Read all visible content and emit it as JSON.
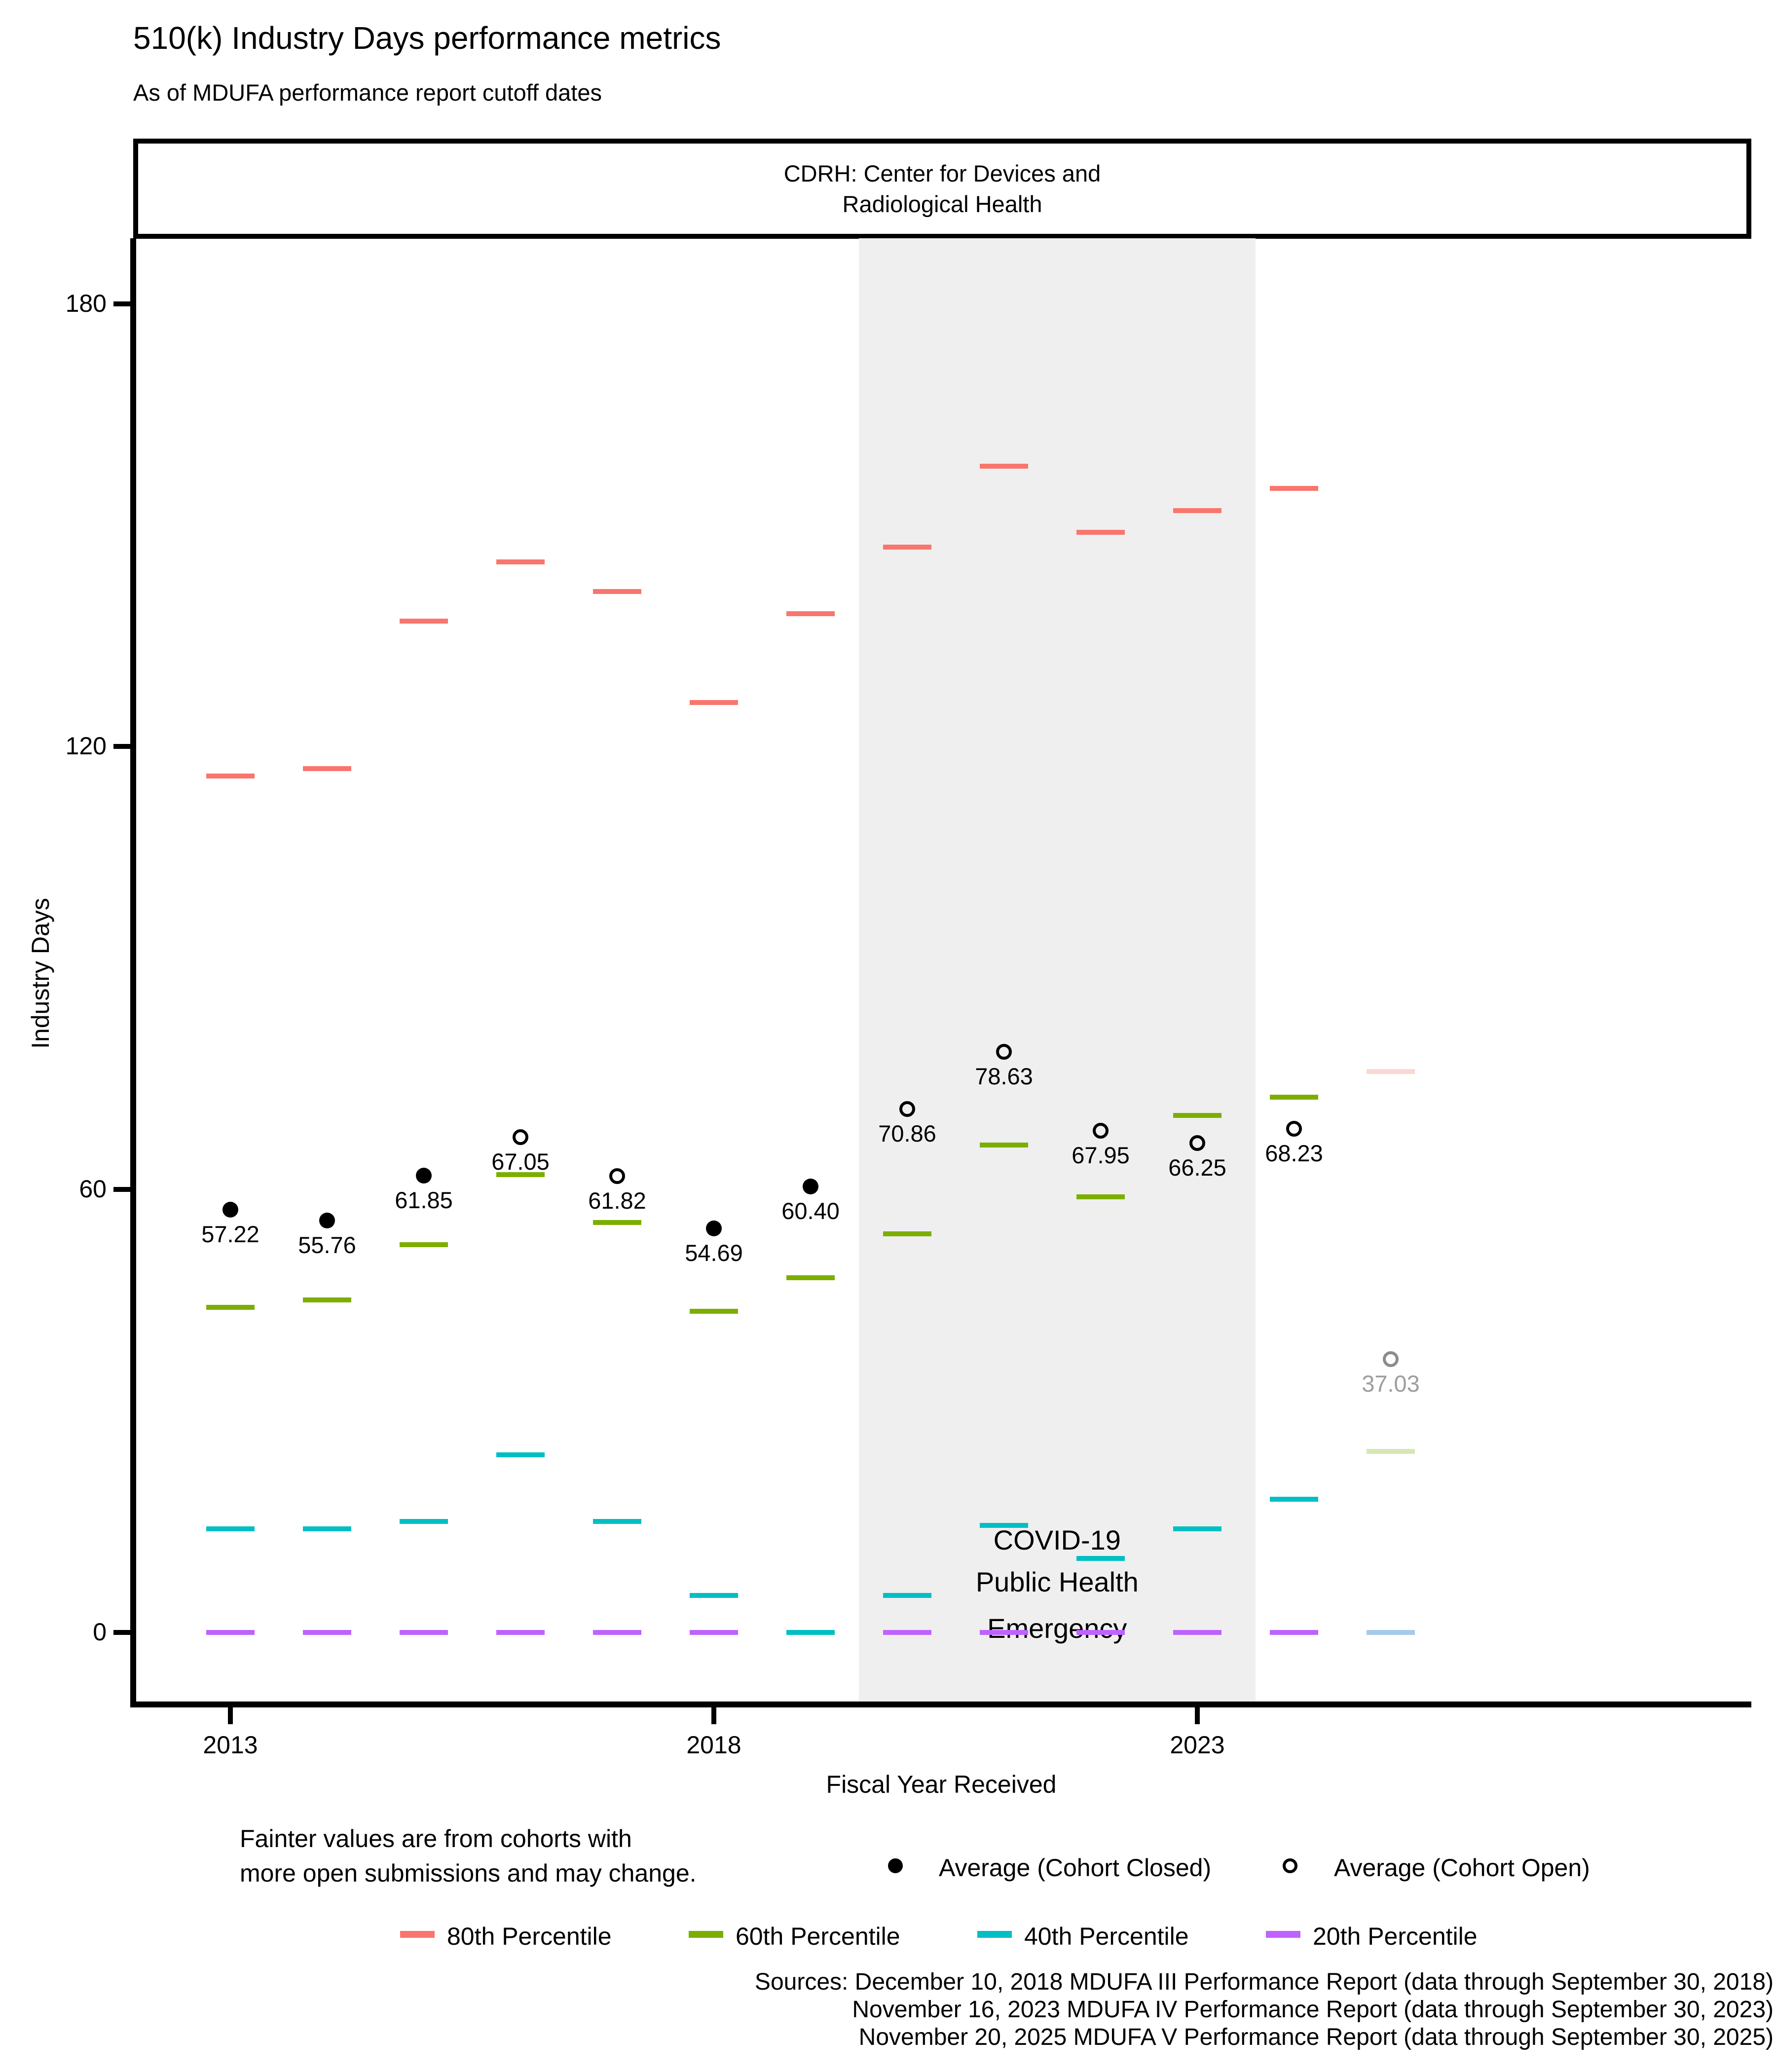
{
  "title": "510(k) Industry Days performance metrics",
  "subtitle": "As of MDUFA performance report cutoff dates",
  "facet": {
    "line1": "CDRH: Center for Devices and",
    "line2": "Radiological Health"
  },
  "covid": {
    "line1": "COVID-19",
    "line2": "Public Health",
    "line3": "Emergency",
    "band_color": "#efefef",
    "x_start_year": 2019.5,
    "x_end_year": 2023.6
  },
  "chart_data": {
    "type": "custom-percentile-dashes",
    "title": "510(k) Industry Days performance metrics",
    "xlabel": "Fiscal Year Received",
    "ylabel": "Industry Days",
    "x_ticks": [
      2013,
      2018,
      2023
    ],
    "y_ticks": [
      0,
      60,
      120,
      180
    ],
    "xlim": [
      2012,
      2028.7
    ],
    "ylim": [
      -9.8,
      188.7
    ],
    "grid": false,
    "legend_position": "bottom",
    "series_colors": {
      "p80": "#F8766D",
      "p60": "#7CAE00",
      "p40": "#00BFC4",
      "p20": "#BE63FD"
    },
    "faint_opacity": 0.3,
    "years": [
      {
        "year": 2013,
        "p80": 116,
        "p60": 44,
        "p40": 14,
        "p20": 0,
        "avg": 57.22,
        "avg_label": "57.22",
        "cohort": "closed",
        "faint": false
      },
      {
        "year": 2014,
        "p80": 117,
        "p60": 45,
        "p40": 14,
        "p20": 0,
        "avg": 55.76,
        "avg_label": "55.76",
        "cohort": "closed",
        "faint": false
      },
      {
        "year": 2015,
        "p80": 137,
        "p60": 52.5,
        "p40": 15,
        "p20": 0,
        "avg": 61.85,
        "avg_label": "61.85",
        "cohort": "closed",
        "faint": false
      },
      {
        "year": 2016,
        "p80": 145,
        "p60": 62,
        "p40": 24,
        "p20": 0,
        "avg": 67.05,
        "avg_label": "67.05",
        "cohort": "open",
        "faint": false
      },
      {
        "year": 2017,
        "p80": 141,
        "p60": 55.5,
        "p40": 15,
        "p20": 0,
        "avg": 61.82,
        "avg_label": "61.82",
        "cohort": "open",
        "faint": false
      },
      {
        "year": 2018,
        "p80": 126,
        "p60": 43.5,
        "p40": 5,
        "p20": 0,
        "avg": 54.69,
        "avg_label": "54.69",
        "cohort": "closed",
        "faint": false
      },
      {
        "year": 2019,
        "p80": 138,
        "p60": 48,
        "p40": 0,
        "p20": 0,
        "avg": 60.4,
        "avg_label": "60.40",
        "cohort": "closed",
        "faint": false
      },
      {
        "year": 2020,
        "p80": 147,
        "p60": 54,
        "p40": 5,
        "p20": 0,
        "avg": 70.86,
        "avg_label": "70.86",
        "cohort": "open",
        "faint": false
      },
      {
        "year": 2021,
        "p80": 158,
        "p60": 66,
        "p40": 14.5,
        "p20": 0,
        "avg": 78.63,
        "avg_label": "78.63",
        "cohort": "open",
        "faint": false
      },
      {
        "year": 2022,
        "p80": 149,
        "p60": 59,
        "p40": 10,
        "p20": 0,
        "avg": 67.95,
        "avg_label": "67.95",
        "cohort": "open",
        "faint": false
      },
      {
        "year": 2023,
        "p80": 152,
        "p60": 70,
        "p40": 14,
        "p20": 0,
        "avg": 66.25,
        "avg_label": "66.25",
        "cohort": "open",
        "faint": false
      },
      {
        "year": 2024,
        "p80": 155,
        "p60": 72.5,
        "p40": 18,
        "p20": 0,
        "avg": 68.23,
        "avg_label": "68.23",
        "cohort": "open",
        "faint": false
      },
      {
        "year": 2025,
        "p80": 76,
        "p60": 24.5,
        "p40": 0,
        "p20": 0,
        "avg": 37.03,
        "avg_label": "37.03",
        "cohort": "open",
        "faint": true
      }
    ]
  },
  "axes": {
    "y_title": "Industry Days",
    "x_title": "Fiscal Year Received"
  },
  "footnote": {
    "line1": "Fainter values are from cohorts with",
    "line2": "more open submissions and may change."
  },
  "legend": {
    "avg_closed": "Average (Cohort Closed)",
    "avg_open": "Average (Cohort Open)",
    "p80": "80th Percentile",
    "p60": "60th Percentile",
    "p40": "40th Percentile",
    "p20": "20th Percentile"
  },
  "sources": {
    "line1": "Sources: December 10, 2018 MDUFA III Performance Report (data through September 30, 2018)",
    "line2": "November 16, 2023 MDUFA IV Performance Report (data through September 30, 2023)",
    "line3": "November 20, 2025 MDUFA V Performance Report (data through September 30, 2025)"
  }
}
